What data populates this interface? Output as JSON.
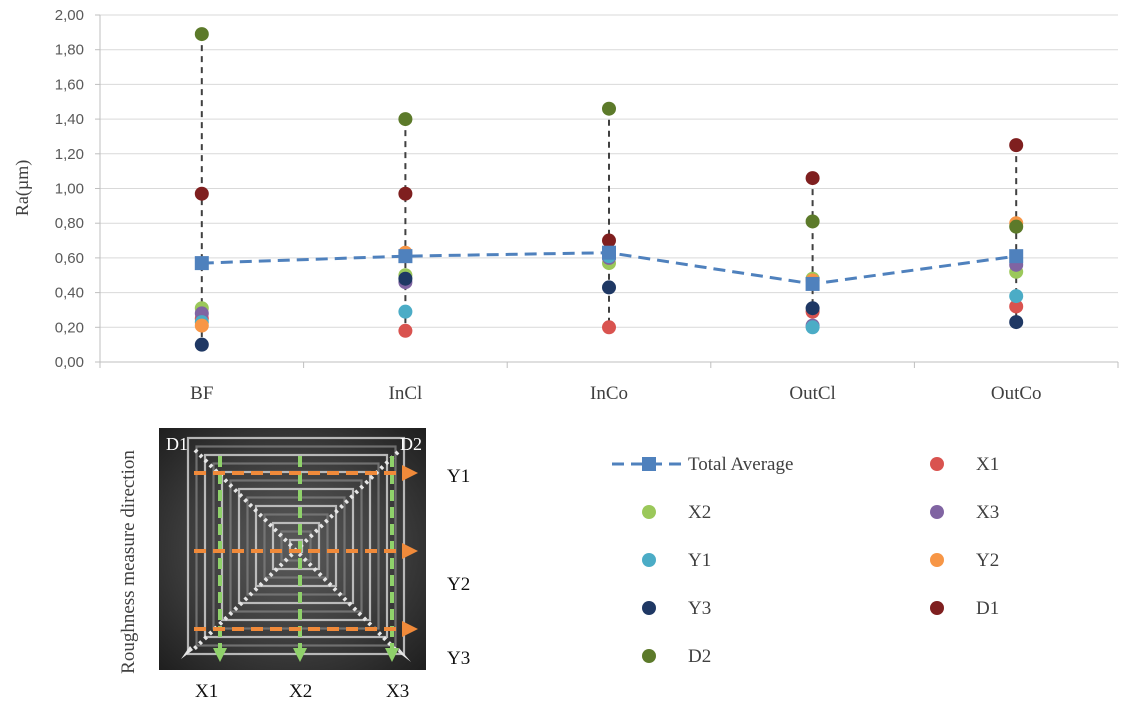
{
  "chart_data": {
    "type": "scatter",
    "categories": [
      "BF",
      "InCl",
      "InCo",
      "OutCl",
      "OutCo"
    ],
    "ylabel": "Ra(µm)",
    "ylim": [
      0,
      2
    ],
    "yticks": [
      "0,00",
      "0,20",
      "0,40",
      "0,60",
      "0,80",
      "1,00",
      "1,20",
      "1,40",
      "1,60",
      "1,80",
      "2,00"
    ],
    "grid": true,
    "series": [
      {
        "name": "Total Average",
        "marker": "square",
        "line": "dashed",
        "color": "#4F81BD",
        "values": [
          0.57,
          0.61,
          0.63,
          0.45,
          0.61
        ]
      },
      {
        "name": "X1",
        "marker": "circle",
        "color": "#D9534F",
        "values": [
          0.25,
          0.18,
          0.2,
          0.29,
          0.32
        ]
      },
      {
        "name": "X2",
        "marker": "circle",
        "color": "#9BC85A",
        "values": [
          0.31,
          0.5,
          0.57,
          0.48,
          0.52
        ]
      },
      {
        "name": "X3",
        "marker": "circle",
        "color": "#8064A2",
        "values": [
          0.28,
          0.46,
          0.6,
          0.21,
          0.56
        ]
      },
      {
        "name": "Y1",
        "marker": "circle",
        "color": "#4BACC6",
        "values": [
          0.23,
          0.29,
          0.61,
          0.2,
          0.38
        ]
      },
      {
        "name": "Y2",
        "marker": "circle",
        "color": "#F79646",
        "values": [
          0.21,
          0.63,
          0.64,
          0.47,
          0.8
        ]
      },
      {
        "name": "Y3",
        "marker": "circle",
        "color": "#1F3864",
        "values": [
          0.1,
          0.48,
          0.43,
          0.31,
          0.23
        ]
      },
      {
        "name": "D1",
        "marker": "circle",
        "color": "#7F1F1F",
        "values": [
          0.97,
          0.97,
          0.7,
          1.06,
          1.25
        ]
      },
      {
        "name": "D2",
        "marker": "circle",
        "color": "#5C7A2A",
        "values": [
          1.89,
          1.4,
          1.46,
          0.81,
          0.78
        ]
      }
    ],
    "range_lines": "dashed"
  },
  "legend": {
    "items": [
      "Total Average",
      "X1",
      "X2",
      "X3",
      "Y1",
      "Y2",
      "Y3",
      "D1",
      "D2"
    ]
  },
  "figure": {
    "side_title": "Roughness measure direction",
    "photo_labels": {
      "d1": "D1",
      "d2": "D2",
      "y1": "Y1",
      "y2": "Y2",
      "y3": "Y3",
      "x1": "X1",
      "x2": "X2",
      "x3": "X3"
    }
  }
}
